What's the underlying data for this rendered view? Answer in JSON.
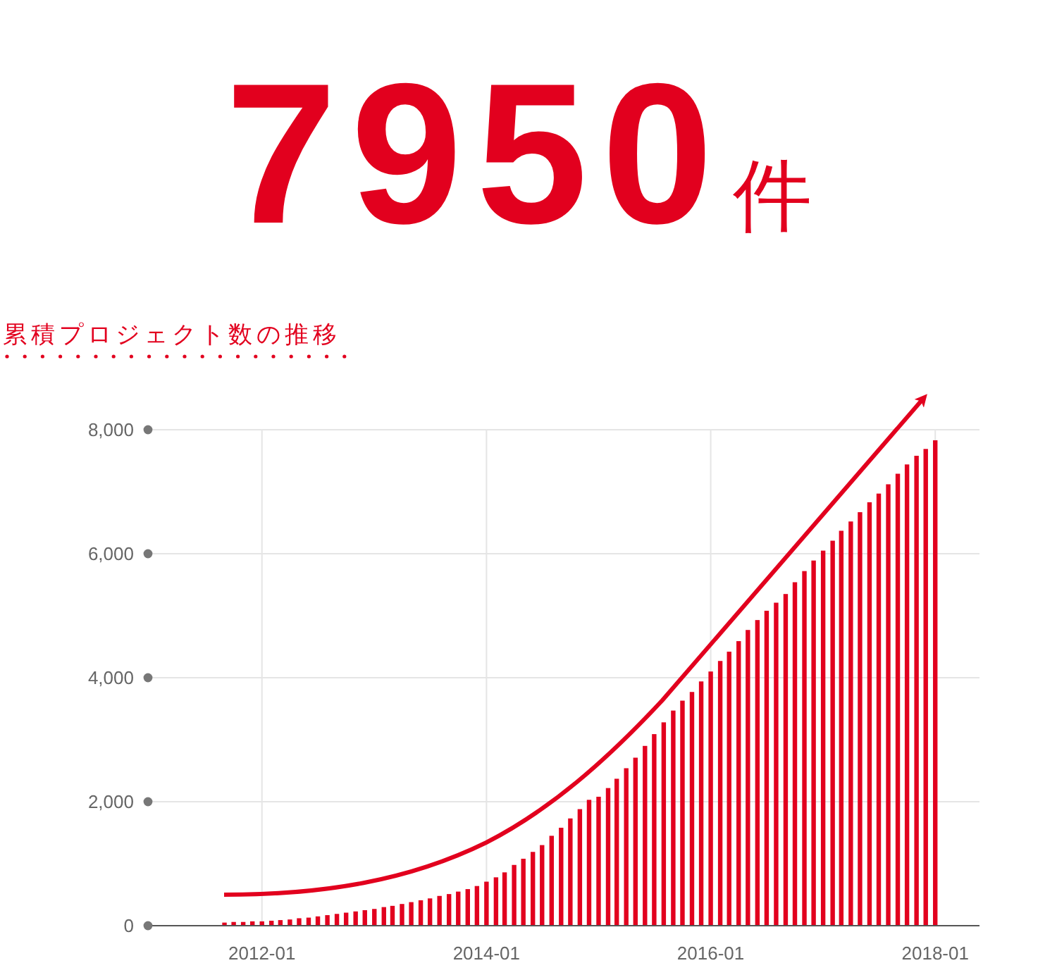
{
  "chart_data": {
    "type": "bar",
    "title": "7950件",
    "subtitle": "累積プロジェクト数の推移",
    "x": [
      "2011-09",
      "2011-10",
      "2011-11",
      "2011-12",
      "2012-01",
      "2012-02",
      "2012-03",
      "2012-04",
      "2012-05",
      "2012-06",
      "2012-07",
      "2012-08",
      "2012-09",
      "2012-10",
      "2012-11",
      "2012-12",
      "2013-01",
      "2013-02",
      "2013-03",
      "2013-04",
      "2013-05",
      "2013-06",
      "2013-07",
      "2013-08",
      "2013-09",
      "2013-10",
      "2013-11",
      "2013-12",
      "2014-01",
      "2014-02",
      "2014-03",
      "2014-04",
      "2014-05",
      "2014-06",
      "2014-07",
      "2014-08",
      "2014-09",
      "2014-10",
      "2014-11",
      "2014-12",
      "2015-01",
      "2015-02",
      "2015-03",
      "2015-04",
      "2015-05",
      "2015-06",
      "2015-07",
      "2015-08",
      "2015-09",
      "2015-10",
      "2015-11",
      "2015-12",
      "2016-01",
      "2016-02",
      "2016-03",
      "2016-04",
      "2016-05",
      "2016-06",
      "2016-07",
      "2016-08",
      "2016-09",
      "2016-10",
      "2016-11",
      "2016-12",
      "2017-01",
      "2017-02",
      "2017-03",
      "2017-04",
      "2017-05",
      "2017-06",
      "2017-07",
      "2017-08",
      "2017-09",
      "2017-10",
      "2017-11",
      "2017-12",
      "2018-01"
    ],
    "values": [
      50,
      60,
      60,
      70,
      70,
      80,
      90,
      100,
      120,
      130,
      150,
      170,
      190,
      210,
      230,
      250,
      270,
      300,
      320,
      350,
      380,
      410,
      440,
      480,
      510,
      550,
      590,
      640,
      710,
      780,
      860,
      980,
      1080,
      1190,
      1300,
      1450,
      1580,
      1730,
      1880,
      2030,
      2080,
      2220,
      2370,
      2540,
      2710,
      2900,
      3090,
      3280,
      3470,
      3630,
      3770,
      3940,
      4100,
      4270,
      4420,
      4590,
      4770,
      4930,
      5080,
      5210,
      5350,
      5540,
      5720,
      5890,
      6050,
      6210,
      6370,
      6520,
      6670,
      6830,
      6970,
      7120,
      7290,
      7440,
      7580,
      7690,
      7830
    ],
    "color": "#e2001e",
    "xlim": [
      "2010-12-26",
      "2018-05-25"
    ],
    "xticks": [
      {
        "value": "2012-01",
        "label": "2012-01"
      },
      {
        "value": "2014-01",
        "label": "2014-01"
      },
      {
        "value": "2016-01",
        "label": "2016-01"
      },
      {
        "value": "2018-01",
        "label": "2018-01"
      }
    ],
    "ylim": [
      0,
      8000
    ],
    "yticks": [
      {
        "value": 0,
        "label": "0"
      },
      {
        "value": 2000,
        "label": "2,000"
      },
      {
        "value": 4000,
        "label": "4,000"
      },
      {
        "value": 6000,
        "label": "6,000"
      },
      {
        "value": 8000,
        "label": "8,000"
      }
    ],
    "grid": true
  }
}
